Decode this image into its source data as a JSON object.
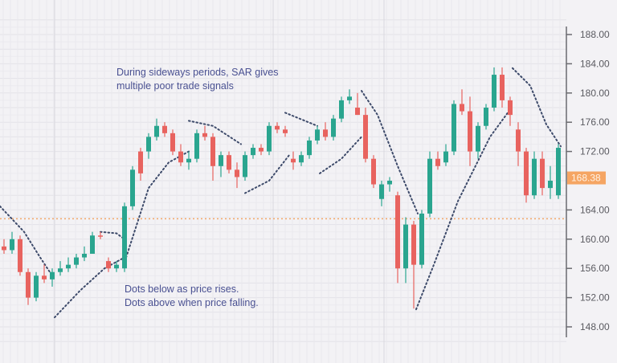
{
  "chart_data": {
    "type": "candlestick",
    "title": "",
    "xlabel": "",
    "ylabel": "",
    "ylim": [
      146,
      190
    ],
    "y_ticks": [
      "188.00",
      "184.00",
      "180.00",
      "176.00",
      "172.00",
      "164.00",
      "160.00",
      "156.00",
      "152.00",
      "148.00"
    ],
    "y_tick_values": [
      188,
      184,
      180,
      176,
      172,
      164,
      160,
      156,
      152,
      148
    ],
    "grid": true,
    "axis_side": "right",
    "current_price": {
      "label": "168.38",
      "value": 168.38,
      "color": "#f5a563"
    },
    "reference_line": {
      "value": 162.8,
      "color": "#f2a76a",
      "style": "dotted"
    },
    "colors": {
      "up": "#2aa58f",
      "down": "#e8635f",
      "sar": "#3d4a6a",
      "axis": "#6b6b70"
    },
    "candles_ohlc": [
      [
        159,
        160,
        158,
        158.5
      ],
      [
        158.5,
        161,
        158,
        160
      ],
      [
        160,
        160.5,
        155,
        155.5
      ],
      [
        155.5,
        156,
        151,
        152
      ],
      [
        152,
        155.5,
        151.5,
        155
      ],
      [
        155,
        156.5,
        154,
        154.5
      ],
      [
        154.5,
        156,
        153.5,
        155.5
      ],
      [
        155.5,
        157,
        155,
        156
      ],
      [
        156,
        157.5,
        155.5,
        156.5
      ],
      [
        156.5,
        158,
        156,
        157.5
      ],
      [
        157.5,
        159,
        157,
        158
      ],
      [
        158,
        161,
        158,
        160.5
      ],
      [
        160.5,
        161,
        160,
        160.4
      ],
      [
        157,
        157.5,
        155.5,
        156
      ],
      [
        156,
        157,
        155.5,
        156.5
      ],
      [
        156,
        165,
        155.5,
        164.5
      ],
      [
        164.5,
        170,
        164,
        169.5
      ],
      [
        172,
        172.5,
        168,
        169
      ],
      [
        172,
        174.5,
        171,
        174
      ],
      [
        174,
        176.5,
        173.5,
        175.5
      ],
      [
        175.5,
        176,
        174,
        174.5
      ],
      [
        174.5,
        175,
        171.5,
        172
      ],
      [
        172,
        173,
        170,
        170.5
      ],
      [
        170.5,
        172,
        169.5,
        171
      ],
      [
        171,
        175,
        170.5,
        174.5
      ],
      [
        174.5,
        175.5,
        173.5,
        174
      ],
      [
        174,
        174.5,
        168,
        170
      ],
      [
        170,
        172,
        168.5,
        171.5
      ],
      [
        171.5,
        172,
        169,
        169.5
      ],
      [
        169.5,
        170.5,
        167,
        168.5
      ],
      [
        168.5,
        172,
        168,
        171.5
      ],
      [
        171.5,
        173,
        171,
        172.5
      ],
      [
        172.5,
        173,
        171.5,
        172
      ],
      [
        172,
        176,
        171.5,
        175.5
      ],
      [
        175.5,
        176,
        174.5,
        175
      ],
      [
        175,
        175.5,
        174,
        174.5
      ],
      [
        171,
        172,
        169.5,
        170.5
      ],
      [
        170.5,
        172,
        170,
        171.5
      ],
      [
        171.5,
        174,
        171,
        173.5
      ],
      [
        173.5,
        175.5,
        173,
        175
      ],
      [
        175,
        176,
        173.5,
        174
      ],
      [
        174,
        177,
        173.5,
        176.5
      ],
      [
        176.5,
        179.5,
        176,
        179
      ],
      [
        179,
        180.5,
        178.5,
        179.5
      ],
      [
        178,
        180,
        177,
        177
      ],
      [
        177,
        178,
        170.5,
        171
      ],
      [
        171,
        171.5,
        167,
        167.5
      ],
      [
        165.5,
        168,
        164.5,
        167.5
      ],
      [
        167.5,
        168.5,
        166.5,
        168
      ],
      [
        166,
        166.5,
        154,
        156
      ],
      [
        156,
        163,
        154,
        162
      ],
      [
        162,
        162.5,
        150.5,
        156.5
      ],
      [
        156.5,
        164,
        156,
        163.5
      ],
      [
        163.5,
        172,
        163,
        171
      ],
      [
        171,
        172,
        169.5,
        170
      ],
      [
        170.5,
        173,
        170,
        172
      ],
      [
        172,
        179,
        171.5,
        178.5
      ],
      [
        178.5,
        180.5,
        177,
        177.5
      ],
      [
        177.5,
        179.5,
        170,
        172
      ],
      [
        172,
        176,
        171,
        175.5
      ],
      [
        175.5,
        178.5,
        175,
        178
      ],
      [
        178,
        183.5,
        177.5,
        182.5
      ],
      [
        182.5,
        183.5,
        178,
        179
      ],
      [
        179,
        179.5,
        175.5,
        177
      ],
      [
        175,
        176,
        170,
        172
      ],
      [
        172,
        172.5,
        165,
        166
      ],
      [
        166,
        172,
        165.5,
        171
      ],
      [
        171,
        172,
        166,
        167
      ],
      [
        167,
        170,
        165.5,
        168
      ],
      [
        166,
        173,
        165.5,
        172.5
      ]
    ],
    "sar_segments": [
      [
        [
          -0.5,
          164.5
        ],
        [
          2.5,
          161
        ],
        [
          4.5,
          157.5
        ],
        [
          6,
          155
        ]
      ],
      [
        [
          6.3,
          149.3
        ],
        [
          9.5,
          153
        ],
        [
          12.5,
          156
        ],
        [
          15,
          157.5
        ]
      ],
      [
        [
          12,
          161
        ],
        [
          14,
          160.8
        ],
        [
          15,
          160
        ]
      ],
      [
        [
          15.2,
          157.5
        ],
        [
          18,
          167
        ],
        [
          20.5,
          170.5
        ],
        [
          23,
          172
        ]
      ],
      [
        [
          23,
          176.2
        ],
        [
          26,
          175.5
        ],
        [
          29.5,
          173
        ]
      ],
      [
        [
          30,
          166.3
        ],
        [
          33,
          168
        ],
        [
          35.5,
          171.5
        ]
      ],
      [
        [
          35,
          177.3
        ],
        [
          39,
          175.5
        ]
      ],
      [
        [
          39.3,
          169
        ],
        [
          42,
          171
        ],
        [
          44.5,
          174
        ]
      ],
      [
        [
          44.5,
          180.3
        ],
        [
          46.5,
          177
        ],
        [
          49,
          170
        ],
        [
          51.5,
          163.5
        ]
      ],
      [
        [
          51.3,
          150.4
        ],
        [
          53.5,
          156.5
        ],
        [
          56.5,
          165.2
        ],
        [
          60.5,
          174
        ],
        [
          62.7,
          177.3
        ]
      ],
      [
        [
          63.3,
          183.4
        ],
        [
          65.5,
          181
        ],
        [
          67.5,
          175.7
        ],
        [
          69.3,
          172.7
        ]
      ]
    ],
    "annotations": {
      "sideways_line1": "During sideways periods, SAR gives",
      "sideways_line2": "multiple poor trade signals",
      "dots_line1": "Dots below as price rises.",
      "dots_line2": "Dots above when price falling."
    }
  }
}
